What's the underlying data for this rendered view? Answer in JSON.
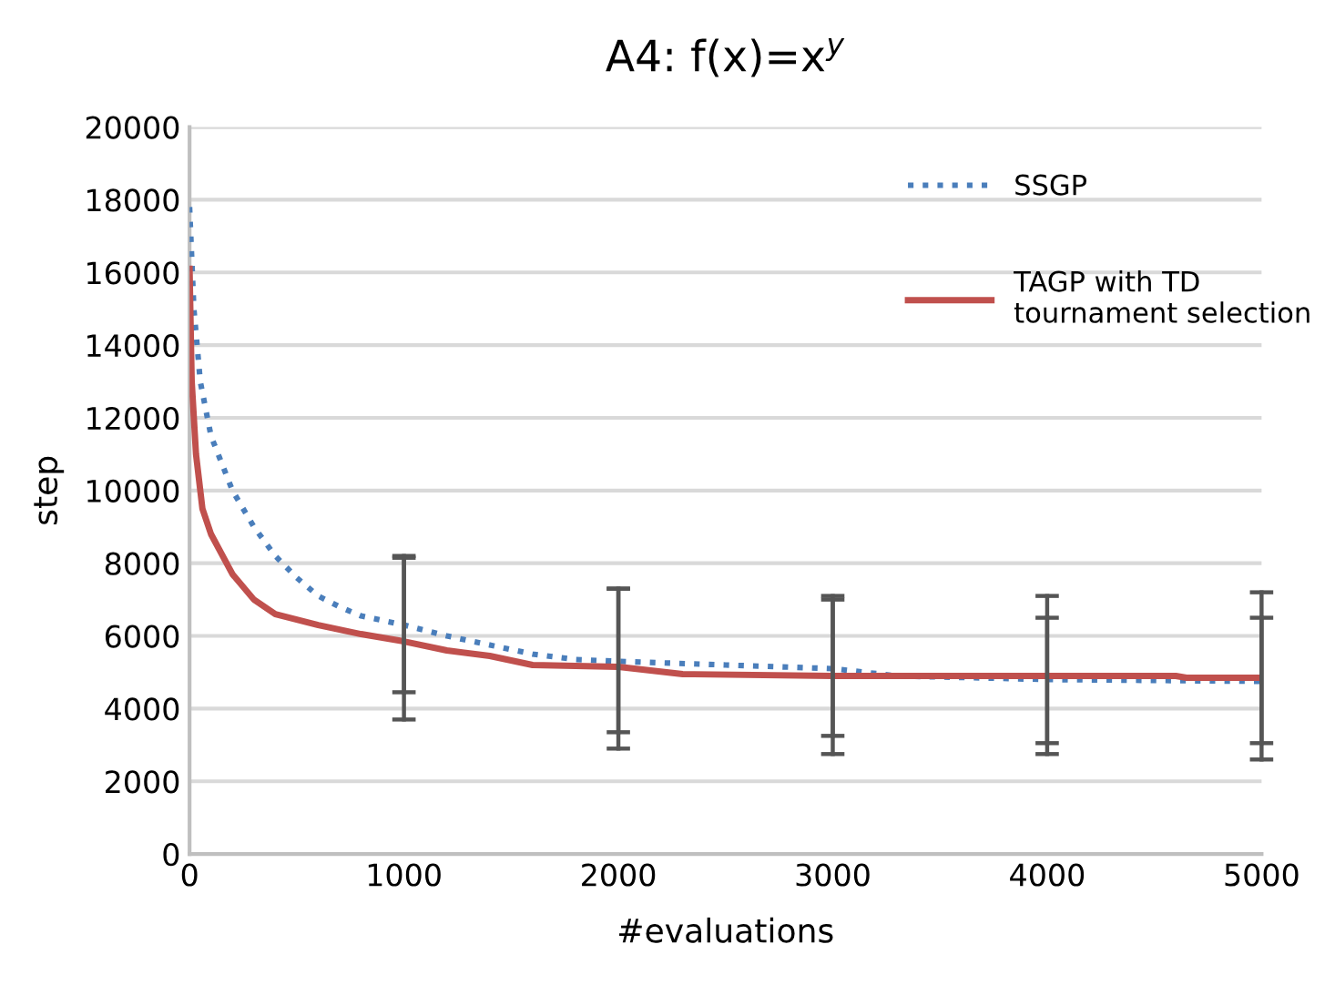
{
  "chart_data": {
    "type": "line",
    "title": "A4: f(x)=x$^{y}$",
    "xlabel": "#evaluations",
    "ylabel": "step",
    "xlim": [
      0,
      5000
    ],
    "xticks": [
      0,
      1000,
      2000,
      3000,
      4000,
      5000
    ],
    "ylim": [
      0,
      20000
    ],
    "yticks": [
      0,
      2000,
      4000,
      6000,
      8000,
      10000,
      12000,
      14000,
      16000,
      18000,
      20000
    ],
    "grid": "y",
    "legend": "top right",
    "marker": "none",
    "series": [
      {
        "name": "SSGP",
        "color": "#4a7ebb",
        "line_style": "dotted",
        "x": [
          0,
          20,
          50,
          100,
          200,
          300,
          400,
          500,
          600,
          700,
          800,
          1000,
          1200,
          1400,
          1600,
          1800,
          2000,
          2500,
          3000,
          3300,
          4000,
          5000
        ],
        "values": [
          17800,
          15000,
          13000,
          11500,
          10000,
          9000,
          8200,
          7600,
          7100,
          6800,
          6550,
          6300,
          6000,
          5750,
          5500,
          5350,
          5300,
          5200,
          5100,
          4900,
          4800,
          4750
        ],
        "errors": [
          null,
          null,
          null,
          null,
          null,
          null,
          null,
          null,
          null,
          null,
          null,
          [
            3700,
            8200
          ],
          null,
          null,
          null,
          null,
          [
            2900,
            7300
          ],
          null,
          [
            2750,
            7100
          ],
          null,
          [
            2750,
            7100
          ],
          [
            2600,
            7200
          ]
        ]
      },
      {
        "name": "TAGP with TD\ntournament selection",
        "color": "#c0504d",
        "line_style": "solid",
        "x": [
          0,
          10,
          30,
          60,
          100,
          200,
          300,
          400,
          600,
          800,
          1000,
          1200,
          1400,
          1600,
          2000,
          2300,
          3000,
          4000,
          4600,
          4650,
          5000
        ],
        "values": [
          16100,
          13000,
          11000,
          9500,
          8800,
          7700,
          7000,
          6600,
          6300,
          6050,
          5850,
          5600,
          5450,
          5200,
          5150,
          4950,
          4900,
          4900,
          4900,
          4850,
          4850
        ],
        "errors": [
          null,
          null,
          null,
          null,
          null,
          null,
          null,
          null,
          null,
          null,
          [
            4450,
            8150
          ],
          null,
          null,
          null,
          [
            3350,
            7300
          ],
          null,
          [
            3250,
            7000
          ],
          [
            3050,
            6500
          ],
          null,
          null,
          [
            3050,
            6500
          ]
        ]
      }
    ]
  }
}
